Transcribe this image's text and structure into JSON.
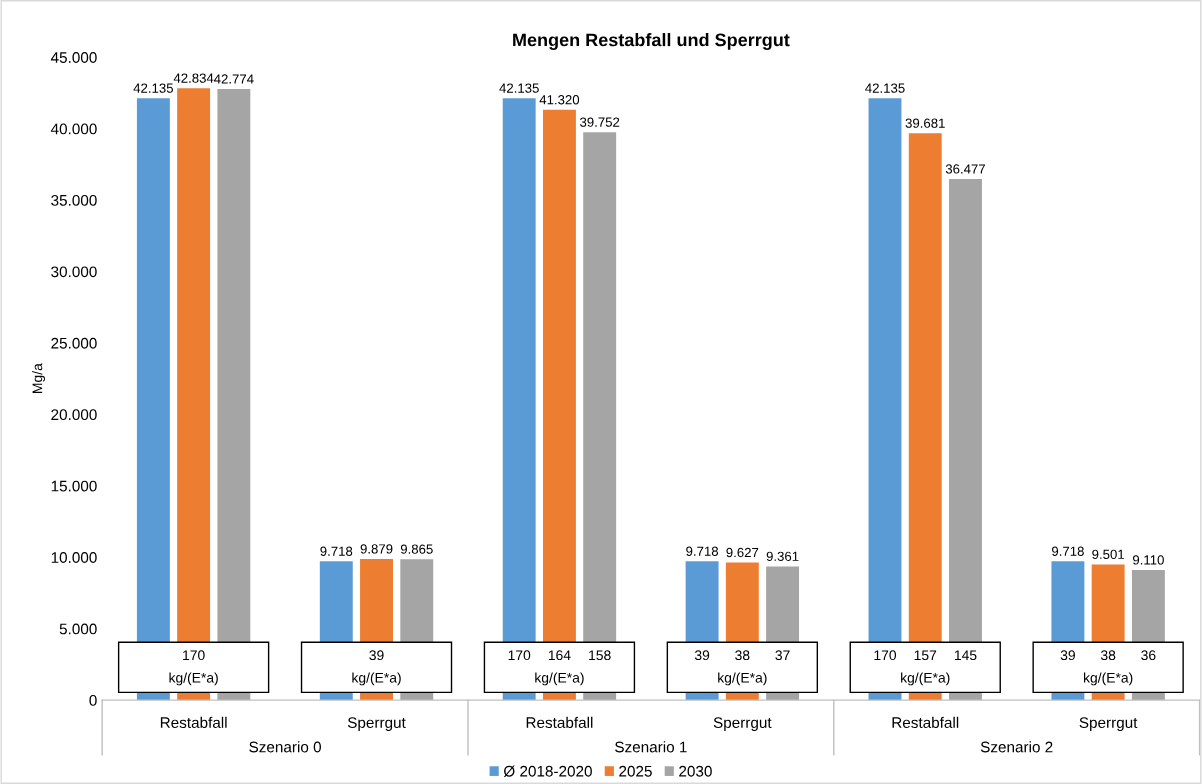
{
  "chart_data": {
    "type": "bar",
    "title": "Mengen Restabfall und Sperrgut",
    "ylabel": "Mg/a",
    "categories": [
      "Restabfall",
      "Sperrgut",
      "Restabfall",
      "Sperrgut",
      "Restabfall",
      "Sperrgut"
    ],
    "series": [
      {
        "name": "Ø 2018-2020",
        "color": "#5b9bd5",
        "values": [
          42135,
          9718,
          42135,
          9718,
          42135,
          9718
        ],
        "value_labels": [
          "42.135",
          "9.718",
          "42.135",
          "9.718",
          "42.135",
          "9.718"
        ]
      },
      {
        "name": "2025",
        "color": "#ed7d31",
        "values": [
          42834,
          9879,
          41320,
          9627,
          39681,
          9501
        ],
        "value_labels": [
          "42.834",
          "9.879",
          "41.320",
          "9.627",
          "39.681",
          "9.501"
        ]
      },
      {
        "name": "2030",
        "color": "#a5a5a5",
        "values": [
          42774,
          9865,
          39752,
          9361,
          36477,
          9110
        ],
        "value_labels": [
          "42.774",
          "9.865",
          "39.752",
          "9.361",
          "36.477",
          "9.110"
        ]
      }
    ],
    "ylim": [
      0,
      45000
    ],
    "yticks": [
      0,
      {
        "value": 5000,
        "label": "5.000"
      },
      {
        "value": 10000,
        "label": "10.000"
      },
      {
        "value": 15000,
        "label": "15.000"
      },
      {
        "value": 20000,
        "label": "20.000"
      },
      {
        "value": 25000,
        "label": "25.000"
      },
      {
        "value": 30000,
        "label": "30.000"
      },
      {
        "value": 35000,
        "label": "35.000"
      },
      {
        "value": 40000,
        "label": "40.000"
      },
      {
        "value": 45000,
        "label": "45.000"
      }
    ],
    "annotations": [
      "170\nkg/(E*a)",
      "39\nkg/(E*a)",
      "170 164 158\nkg/(E*a)",
      "39 38 37\nkg/(E*a)",
      "170 157 145\nkg/(E*a)",
      "39 38 36\nkg/(E*a)",
      "Szenario 0",
      "Szenario 1",
      "Szenario 2"
    ],
    "grid": false,
    "legend": "bottom"
  }
}
